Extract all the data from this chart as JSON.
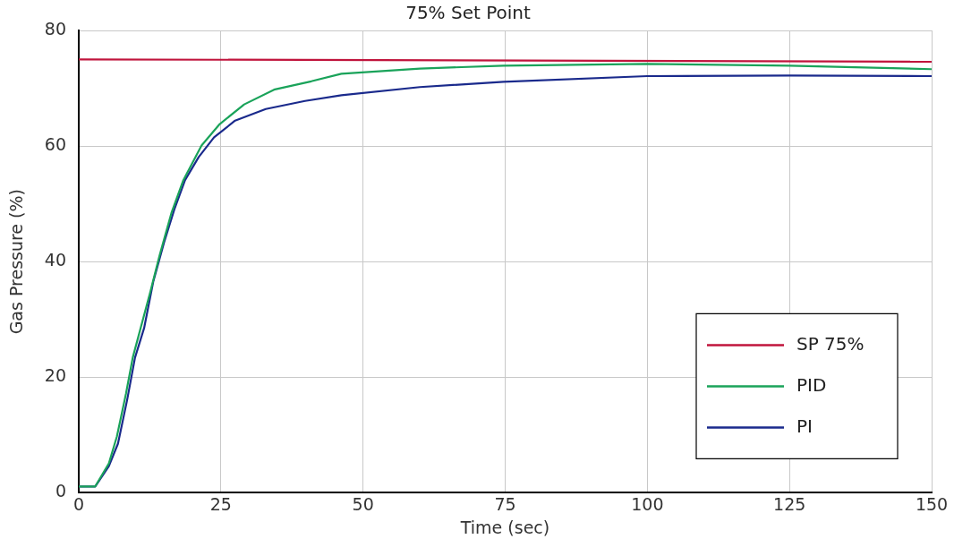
{
  "chart_data": {
    "type": "line",
    "title": "75% Set Point",
    "xlabel": "Time (sec)",
    "ylabel": "Gas Pressure (%)",
    "xlim": [
      0,
      150
    ],
    "xticks": [
      0,
      25,
      50,
      75,
      100,
      125,
      150
    ],
    "ylim": [
      0,
      80
    ],
    "yticks": [
      0,
      20,
      40,
      60,
      80
    ],
    "grid": true,
    "legend": "bottom right",
    "marker": "none",
    "line_style": "solid",
    "series": [
      {
        "name": "SP 75%",
        "color": "#c0143c",
        "x": [
          0,
          150
        ],
        "values": [
          75,
          74.6
        ]
      },
      {
        "name": "PID",
        "color": "#1aa35a",
        "x": [
          0,
          2.9,
          5.3,
          6.7,
          8.3,
          9.5,
          12.6,
          14.2,
          16.3,
          18.4,
          21.6,
          24.8,
          29.1,
          34.5,
          40.9,
          46.2,
          60,
          74.7,
          100,
          125,
          150
        ],
        "values": [
          1.1,
          1.1,
          5.1,
          9.7,
          17.1,
          23.4,
          34.8,
          41,
          48.4,
          54.1,
          60.1,
          63.8,
          67.2,
          69.8,
          71.2,
          72.5,
          73.4,
          73.9,
          74.2,
          73.9,
          73.3
        ]
      },
      {
        "name": "PI",
        "color": "#1a2a8c",
        "x": [
          0,
          2.9,
          5.3,
          6.9,
          8.5,
          9.9,
          11.5,
          13.1,
          15,
          16.8,
          18.7,
          21.1,
          23.8,
          27.5,
          32.9,
          39.8,
          46.2,
          60,
          74.7,
          100,
          125,
          150
        ],
        "values": [
          1.1,
          1.1,
          4.6,
          8.5,
          16,
          23.4,
          28.5,
          36.5,
          43.3,
          49,
          54.1,
          58.1,
          61.5,
          64.4,
          66.4,
          67.8,
          68.8,
          70.2,
          71.1,
          72.1,
          72.2,
          72.1
        ]
      }
    ]
  }
}
